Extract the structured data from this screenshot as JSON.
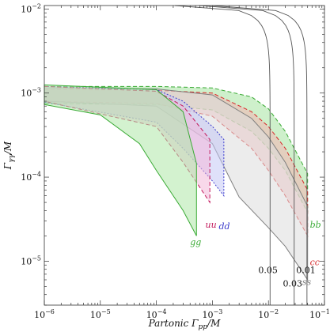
{
  "chart_data": {
    "type": "area",
    "xlabel": "Partonic Γ_pp/M",
    "ylabel": "Γ_γγ/M",
    "xlabel_parts": [
      "Partonic Γ",
      "pp",
      "/M"
    ],
    "ylabel_parts": [
      "Γ",
      "γγ",
      "/M"
    ],
    "xscale": "log",
    "yscale": "log",
    "xlim": [
      1e-06,
      0.1
    ],
    "ylim": [
      3e-06,
      0.011
    ],
    "x_ticks": [
      {
        "value": 1e-06,
        "label": "10",
        "exp": "−6"
      },
      {
        "value": 1e-05,
        "label": "10",
        "exp": "−5"
      },
      {
        "value": 0.0001,
        "label": "10",
        "exp": "−4"
      },
      {
        "value": 0.001,
        "label": "10",
        "exp": "−3"
      },
      {
        "value": 0.01,
        "label": "10",
        "exp": "−2"
      },
      {
        "value": 0.1,
        "label": "10",
        "exp": "−1"
      }
    ],
    "y_ticks": [
      {
        "value": 1e-05,
        "label": "10",
        "exp": "−5"
      },
      {
        "value": 0.0001,
        "label": "10",
        "exp": "−4"
      },
      {
        "value": 0.001,
        "label": "10",
        "exp": "−3"
      },
      {
        "value": 0.01,
        "label": "10",
        "exp": "−2"
      }
    ],
    "bands": [
      {
        "name": "bb",
        "color": "#3aaa35",
        "fill": "#a6e3a1",
        "dash": "5,3",
        "xmax": 0.05,
        "label": {
          "text": "bb",
          "x": 0.055,
          "y": 2.5e-05
        },
        "upper": [
          [
            1e-06,
            0.0012
          ],
          [
            0.0001,
            0.0012
          ],
          [
            0.001,
            0.00115
          ],
          [
            0.005,
            0.0009
          ],
          [
            0.01,
            0.00065
          ],
          [
            0.02,
            0.00035
          ],
          [
            0.05,
            0.00011
          ]
        ],
        "lower": [
          [
            1e-06,
            0.00075
          ],
          [
            0.0001,
            0.00073
          ],
          [
            0.001,
            0.00063
          ],
          [
            0.005,
            0.00035
          ],
          [
            0.01,
            0.00022
          ],
          [
            0.02,
            0.00012
          ],
          [
            0.05,
            3.8e-05
          ]
        ]
      },
      {
        "name": "cc",
        "color": "#d62728",
        "fill": "#f4b5b5",
        "dash": "5,3",
        "xmax": 0.05,
        "label": {
          "text": "cc",
          "x": 0.055,
          "y": 9e-06
        },
        "upper": [
          [
            1e-06,
            0.0011
          ],
          [
            0.0001,
            0.00108
          ],
          [
            0.001,
            0.001
          ],
          [
            0.005,
            0.0006
          ],
          [
            0.01,
            0.0004
          ],
          [
            0.02,
            0.00022
          ],
          [
            0.05,
            7e-05
          ]
        ],
        "lower": [
          [
            1e-06,
            0.0008
          ],
          [
            0.0001,
            0.00075
          ],
          [
            0.001,
            0.00053
          ],
          [
            0.005,
            0.00022
          ],
          [
            0.01,
            0.00012
          ],
          [
            0.02,
            6e-05
          ],
          [
            0.05,
            2e-05
          ]
        ]
      },
      {
        "name": "ss",
        "color": "#7f7f7f",
        "fill": "#dcdcdc",
        "dash": "0",
        "xmax": 0.05,
        "label": {
          "text": "ss",
          "x": 0.04,
          "y": 5.2e-06
        },
        "upper": [
          [
            1e-06,
            0.00115
          ],
          [
            0.0001,
            0.00112
          ],
          [
            0.001,
            0.00095
          ],
          [
            0.005,
            0.0005
          ],
          [
            0.01,
            0.0003
          ],
          [
            0.02,
            0.00015
          ],
          [
            0.05,
            4.5e-05
          ]
        ],
        "lower": [
          [
            1e-06,
            0.0008
          ],
          [
            0.0001,
            0.0007
          ],
          [
            0.001,
            0.00025
          ],
          [
            0.003,
            5.8e-05
          ],
          [
            0.01,
            2.5e-05
          ],
          [
            0.02,
            1.5e-05
          ],
          [
            0.05,
            6e-06
          ]
        ]
      },
      {
        "name": "dd",
        "color": "#3b3bcc",
        "fill": "#c5c8f5",
        "dash": "2,2",
        "xmax": 0.0016,
        "label": {
          "text": "dd",
          "x": 0.0013,
          "y": 2.4e-05
        },
        "upper": [
          [
            1e-06,
            0.0012
          ],
          [
            0.0001,
            0.0011
          ],
          [
            0.0003,
            0.0008
          ],
          [
            0.001,
            0.0004
          ],
          [
            0.0016,
            0.00028
          ]
        ],
        "lower": [
          [
            1e-06,
            0.00078
          ],
          [
            0.0001,
            0.00045
          ],
          [
            0.0003,
            0.00022
          ],
          [
            0.001,
            9e-05
          ],
          [
            0.0016,
            6e-05
          ]
        ]
      },
      {
        "name": "uu",
        "color": "#c2185b",
        "fill": "#f3b8d8",
        "dash": "5,3",
        "xmax": 0.0009,
        "label": {
          "text": "uu",
          "x": 0.00075,
          "y": 2.5e-05
        },
        "upper": [
          [
            1e-06,
            0.0012
          ],
          [
            0.0001,
            0.00105
          ],
          [
            0.0003,
            0.0007
          ],
          [
            0.0009,
            0.00028
          ]
        ],
        "lower": [
          [
            1e-06,
            0.0008
          ],
          [
            0.0001,
            0.0004
          ],
          [
            0.0003,
            0.00015
          ],
          [
            0.0009,
            5e-05
          ]
        ]
      },
      {
        "name": "gg",
        "color": "#3aaa35",
        "fill": "#aee8a8",
        "dash": "0",
        "xmax": 0.00052,
        "label": {
          "text": "gg",
          "x": 0.0004,
          "y": 1.55e-05
        },
        "upper": [
          [
            1e-06,
            0.00125
          ],
          [
            0.0001,
            0.0011
          ],
          [
            0.0003,
            0.0006
          ],
          [
            0.00052,
            0.000145
          ]
        ],
        "lower": [
          [
            1e-06,
            0.00073
          ],
          [
            1e-05,
            0.00055
          ],
          [
            5e-05,
            0.00025
          ],
          [
            0.0001,
            0.00012
          ],
          [
            0.0003,
            4e-05
          ],
          [
            0.00052,
            2e-05
          ]
        ]
      }
    ],
    "contours": [
      {
        "label": "0.05",
        "x0": 0.0107,
        "label_x": 0.0098,
        "label_y": 7.2e-06
      },
      {
        "label": "0.03",
        "x0": 0.0288,
        "label_x": 0.027,
        "label_y": 5e-06
      },
      {
        "label": "0.01",
        "x0": 0.0487,
        "label_x": 0.0465,
        "label_y": 7.2e-06
      }
    ]
  }
}
